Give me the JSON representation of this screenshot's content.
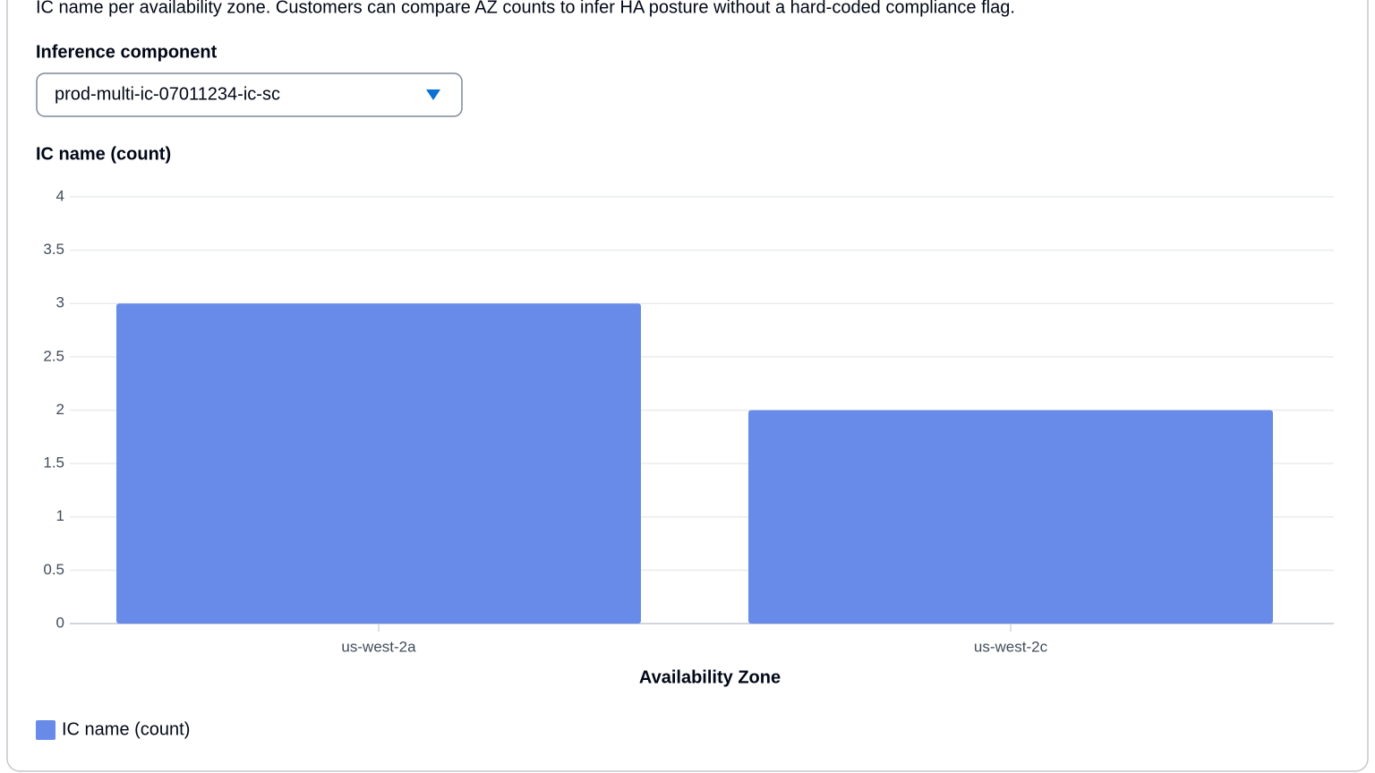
{
  "description": "IC name per availability zone. Customers can compare AZ counts to infer HA posture without a hard-coded compliance flag.",
  "select_label": "Inference component",
  "select_value": "prod-multi-ic-07011234-ic-sc",
  "chart_data": {
    "type": "bar",
    "y_label": "IC name (count)",
    "x_label": "Availability Zone",
    "categories": [
      "us-west-2a",
      "us-west-2c"
    ],
    "series": [
      {
        "name": "IC name (count)",
        "color": "#688ae8",
        "values": [
          3,
          2
        ]
      }
    ],
    "ylim": [
      0,
      4
    ],
    "yticks": [
      0,
      0.5,
      1,
      1.5,
      2,
      2.5,
      3,
      3.5,
      4
    ],
    "grid": true
  }
}
